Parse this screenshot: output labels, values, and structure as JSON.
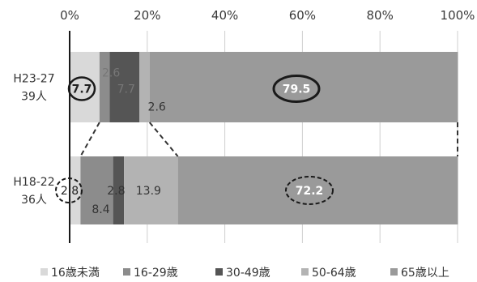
{
  "chart_data": {
    "type": "bar",
    "orientation": "horizontal",
    "stacked": true,
    "percent": true,
    "categories": [
      {
        "line1": "H23-27",
        "line2": "39人"
      },
      {
        "line1": "H18-22",
        "line2": "36人"
      }
    ],
    "x_ticks": [
      "0%",
      "20%",
      "40%",
      "60%",
      "80%",
      "100%"
    ],
    "xlim": [
      0,
      100
    ],
    "grid": true,
    "legend_position": "bottom",
    "series": [
      {
        "name": "16歳未満",
        "color": "#d9d9d9",
        "values": [
          7.7,
          2.8
        ]
      },
      {
        "name": "16-29歳",
        "color": "#8c8c8c",
        "values": [
          2.6,
          8.4
        ]
      },
      {
        "name": "30-49歳",
        "color": "#555555",
        "values": [
          7.7,
          2.8
        ]
      },
      {
        "name": "50-64歳",
        "color": "#b3b3b3",
        "values": [
          2.6,
          13.9
        ]
      },
      {
        "name": "65歳以上",
        "color": "#9a9a9a",
        "values": [
          79.5,
          72.2
        ]
      }
    ],
    "data_labels": [
      [
        "7.7",
        "2.6",
        "7.7",
        "2.6",
        "79.5"
      ],
      [
        "2.8",
        "8.4",
        "2.8",
        "13.9",
        "72.2"
      ]
    ]
  }
}
